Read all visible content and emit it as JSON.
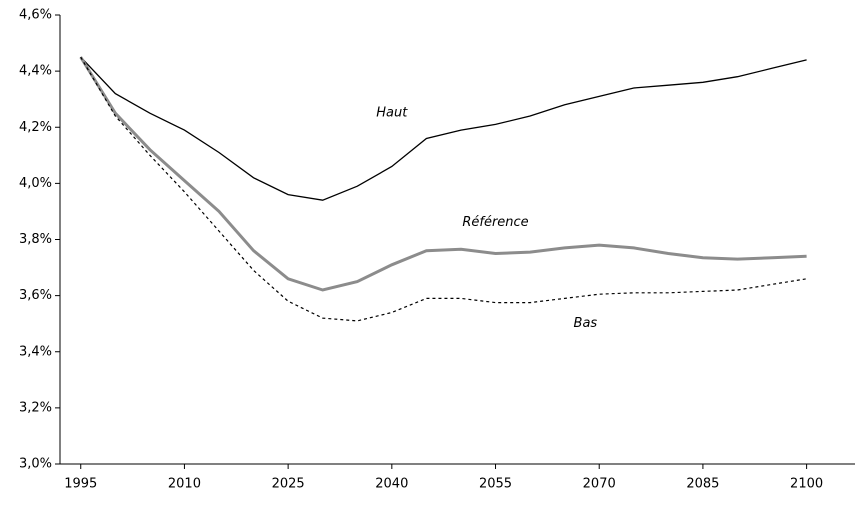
{
  "chart_data": {
    "type": "line",
    "x": [
      1995,
      2000,
      2005,
      2010,
      2015,
      2020,
      2025,
      2030,
      2035,
      2040,
      2045,
      2050,
      2055,
      2060,
      2065,
      2070,
      2075,
      2080,
      2085,
      2090,
      2095,
      2100
    ],
    "series": [
      {
        "name": "Haut",
        "color": "#000000",
        "dashed": false,
        "values": [
          4.45,
          4.32,
          4.25,
          4.19,
          4.11,
          4.02,
          3.96,
          3.94,
          3.99,
          4.06,
          4.16,
          4.19,
          4.21,
          4.24,
          4.28,
          4.31,
          4.34,
          4.35,
          4.36,
          4.38,
          4.41,
          4.44
        ]
      },
      {
        "name": "Référence",
        "color": "#8c8c8c",
        "dashed": false,
        "values": [
          4.45,
          4.25,
          4.12,
          4.01,
          3.9,
          3.76,
          3.66,
          3.62,
          3.65,
          3.71,
          3.76,
          3.765,
          3.75,
          3.755,
          3.77,
          3.78,
          3.77,
          3.75,
          3.735,
          3.73,
          3.735,
          3.74
        ]
      },
      {
        "name": "Bas",
        "color": "#000000",
        "dashed": true,
        "values": [
          4.45,
          4.24,
          4.1,
          3.97,
          3.83,
          3.69,
          3.58,
          3.52,
          3.51,
          3.54,
          3.59,
          3.59,
          3.575,
          3.575,
          3.59,
          3.605,
          3.61,
          3.61,
          3.615,
          3.62,
          3.64,
          3.66
        ]
      }
    ],
    "xlim": [
      1992,
      2107
    ],
    "xticks": [
      1995,
      2010,
      2025,
      2040,
      2055,
      2070,
      2085,
      2100
    ],
    "ylim": [
      3.0,
      4.6
    ],
    "yticks": [
      {
        "value": 3.0,
        "label": "3,0%"
      },
      {
        "value": 3.2,
        "label": "3,2%"
      },
      {
        "value": 3.4,
        "label": "3,4%"
      },
      {
        "value": 3.6,
        "label": "3,6%"
      },
      {
        "value": 3.8,
        "label": "3,8%"
      },
      {
        "value": 4.0,
        "label": "4,0%"
      },
      {
        "value": 4.2,
        "label": "4,2%"
      },
      {
        "value": 4.4,
        "label": "4,4%"
      },
      {
        "value": 4.6,
        "label": "4,6%"
      }
    ],
    "grid": false
  }
}
